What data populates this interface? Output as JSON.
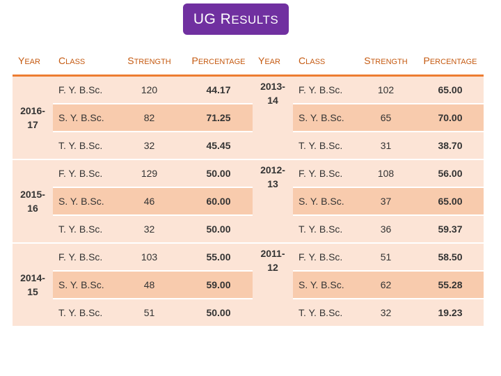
{
  "title": {
    "first": "UG R",
    "rest": "esults"
  },
  "headers": {
    "year": {
      "first": "Y",
      "rest": "ear"
    },
    "class": {
      "first": "C",
      "rest": "lass"
    },
    "strength": {
      "first": "S",
      "rest": "trength"
    },
    "percentage": {
      "first": "P",
      "rest": "ercentage"
    }
  },
  "left": [
    {
      "year_top": "2016-",
      "year_bottom": "17",
      "rows": [
        {
          "class": "F. Y. B.Sc.",
          "strength": "120",
          "percentage": "44.17"
        },
        {
          "class": "S. Y. B.Sc.",
          "strength": "82",
          "percentage": "71.25"
        },
        {
          "class": "T. Y. B.Sc.",
          "strength": "32",
          "percentage": "45.45"
        }
      ]
    },
    {
      "year_top": "2015-",
      "year_bottom": "16",
      "rows": [
        {
          "class": "F. Y. B.Sc.",
          "strength": "129",
          "percentage": "50.00"
        },
        {
          "class": "S. Y. B.Sc.",
          "strength": "46",
          "percentage": "60.00"
        },
        {
          "class": "T. Y. B.Sc.",
          "strength": "32",
          "percentage": "50.00"
        }
      ]
    },
    {
      "year_top": "2014-",
      "year_bottom": "15",
      "rows": [
        {
          "class": "F. Y. B.Sc.",
          "strength": "103",
          "percentage": "55.00"
        },
        {
          "class": "S. Y. B.Sc.",
          "strength": "48",
          "percentage": "59.00"
        },
        {
          "class": "T. Y. B.Sc.",
          "strength": "51",
          "percentage": "50.00"
        }
      ]
    }
  ],
  "right": [
    {
      "year_top": "2013-",
      "year_bottom": "14",
      "rows": [
        {
          "class": "F. Y. B.Sc.",
          "strength": "102",
          "percentage": "65.00"
        },
        {
          "class": "S. Y. B.Sc.",
          "strength": "65",
          "percentage": "70.00"
        },
        {
          "class": "T. Y. B.Sc.",
          "strength": "31",
          "percentage": "38.70"
        }
      ]
    },
    {
      "year_top": "2012-",
      "year_bottom": "13",
      "rows": [
        {
          "class": "F. Y. B.Sc.",
          "strength": "108",
          "percentage": "56.00"
        },
        {
          "class": "S. Y. B.Sc.",
          "strength": "37",
          "percentage": "65.00"
        },
        {
          "class": "T. Y. B.Sc.",
          "strength": "36",
          "percentage": "59.37"
        }
      ]
    },
    {
      "year_top": "2011-",
      "year_bottom": "12",
      "rows": [
        {
          "class": "F. Y. B.Sc.",
          "strength": "51",
          "percentage": "58.50"
        },
        {
          "class": "S. Y. B.Sc.",
          "strength": "62",
          "percentage": "55.28"
        },
        {
          "class": "T. Y. B.Sc.",
          "strength": "32",
          "percentage": "19.23"
        }
      ]
    }
  ],
  "colors": {
    "title_bg": "#7030a0",
    "header_text": "#c55a11",
    "header_rule": "#ed7d31",
    "row_light": "#fce4d6",
    "row_dark": "#f8cbad"
  }
}
